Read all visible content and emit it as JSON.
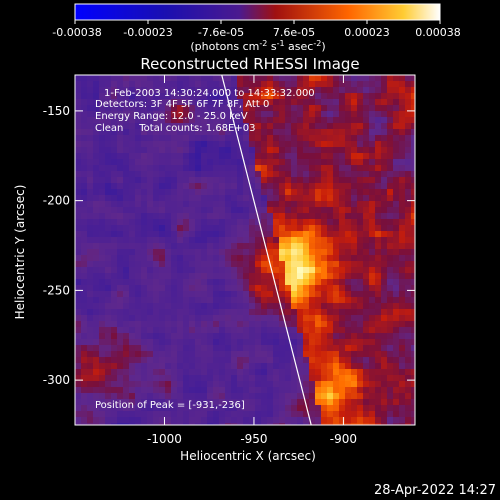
{
  "chart_data": {
    "type": "heatmap",
    "title": "Reconstructed RHESSI Image",
    "xlabel": "Heliocentric X (arcsec)",
    "ylabel": "Heliocentric Y (arcsec)",
    "xlim": [
      -1050,
      -860
    ],
    "ylim": [
      -325,
      -130
    ],
    "xticks": [
      -1000,
      -950,
      -900
    ],
    "yticks": [
      -150,
      -200,
      -250,
      -300
    ],
    "colorbar": {
      "min": -0.00038,
      "max": 0.00038,
      "ticks": [
        "-0.00038",
        "-0.00023",
        "-7.6e-05",
        "7.6e-05",
        "0.00023",
        "0.00038"
      ],
      "unit_label": "(photons cm",
      "unit_sup1": "-2",
      "unit_mid": " s",
      "unit_sup2": "-1",
      "unit_mid2": " asec",
      "unit_sup3": "-2",
      "unit_end": ")"
    },
    "annotations": [
      "1-Feb-2003 14:30:24.000 to 14:33:32.000",
      "Detectors: 3F 4F 5F 6F 7F 8F, Att 0",
      "Energy Range: 12.0 - 25.0 keV",
      "Clean     Total counts: 1.68E+03"
    ],
    "peak_label": "Position of Peak = [-931,-236]",
    "peak": [
      -931,
      -236
    ],
    "limb_line": {
      "x": [
        -968,
        -918
      ],
      "y": [
        -130,
        -325
      ]
    }
  },
  "footer": {
    "timestamp": "28-Apr-2022 14:27"
  }
}
